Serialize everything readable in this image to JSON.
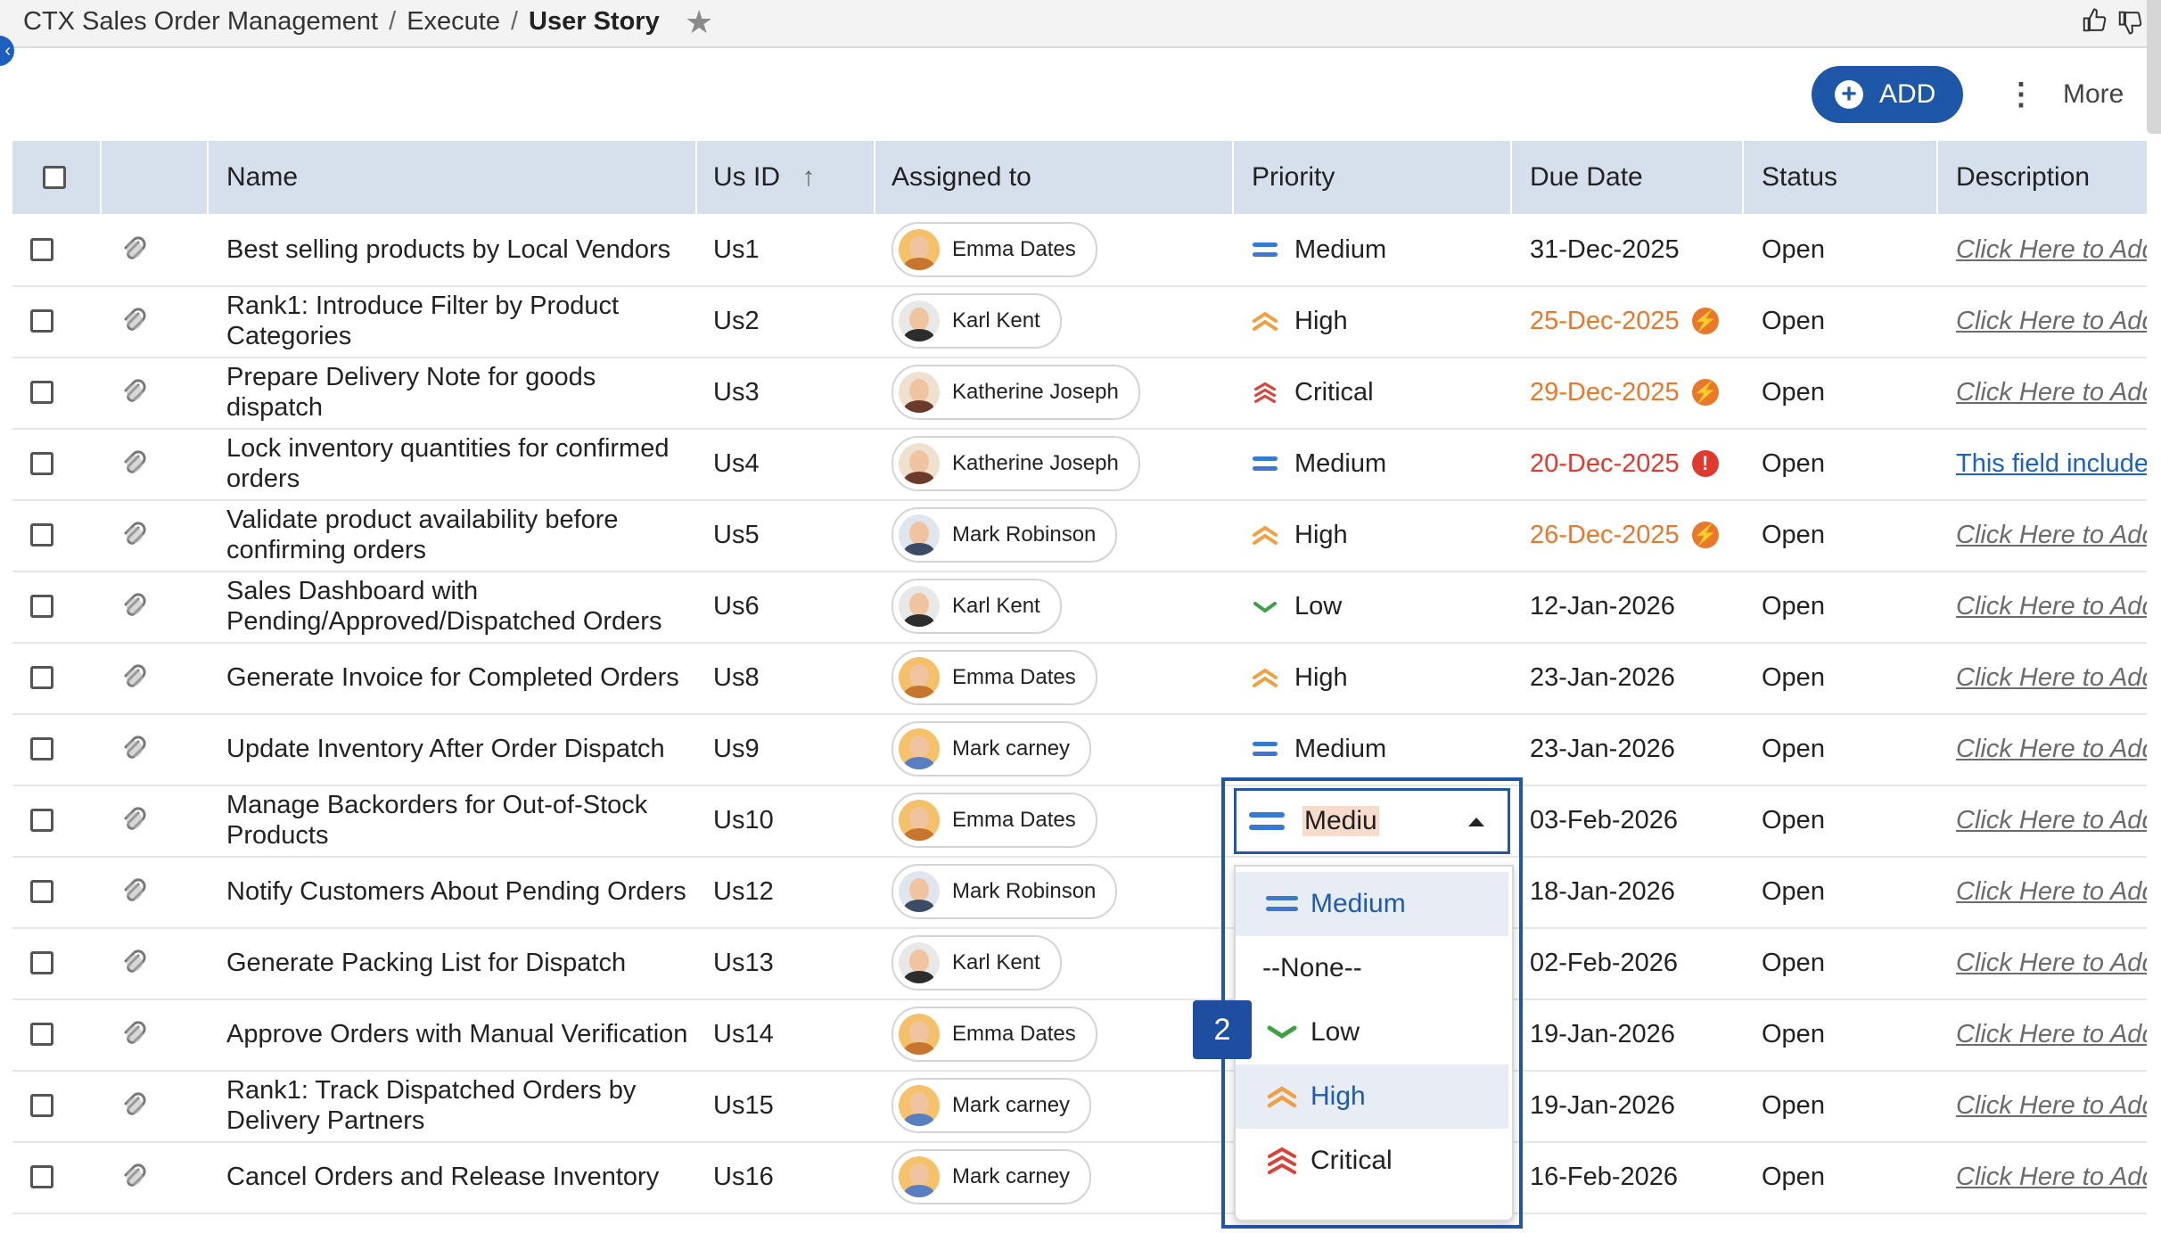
{
  "breadcrumb": {
    "app": "CTX Sales Order Management",
    "section": "Execute",
    "current": "User Story"
  },
  "toolbar": {
    "add_label": "ADD",
    "more_label": "More"
  },
  "columns": {
    "name": "Name",
    "usid": "Us ID",
    "assigned": "Assigned to",
    "priority": "Priority",
    "due": "Due Date",
    "status": "Status",
    "description": "Description"
  },
  "rows": [
    {
      "name": "Best selling products by Local Vendors",
      "usid": "Us1",
      "assignee": "Emma Dates",
      "priority": "Medium",
      "due": "31-Dec-2025",
      "status": "Open",
      "description": "Click Here to Add"
    },
    {
      "name": "Rank1: Introduce Filter by Product Categories",
      "usid": "Us2",
      "assignee": "Karl Kent",
      "priority": "High",
      "due": "25-Dec-2025",
      "status": "Open",
      "description": "Click Here to Add"
    },
    {
      "name": "Prepare Delivery Note for goods dispatch",
      "usid": "Us3",
      "assignee": "Katherine Joseph",
      "priority": "Critical",
      "due": "29-Dec-2025",
      "status": "Open",
      "description": "Click Here to Add"
    },
    {
      "name": "Lock inventory quantities for confirmed orders",
      "usid": "Us4",
      "assignee": "Katherine Joseph",
      "priority": "Medium",
      "due": "20-Dec-2025",
      "status": "Open",
      "description": "This field includes"
    },
    {
      "name": "Validate product availability before confirming orders",
      "usid": "Us5",
      "assignee": "Mark Robinson",
      "priority": "High",
      "due": "26-Dec-2025",
      "status": "Open",
      "description": "Click Here to Add"
    },
    {
      "name": "Sales Dashboard with Pending/Approved/Dispatched Orders",
      "usid": "Us6",
      "assignee": "Karl Kent",
      "priority": "Low",
      "due": "12-Jan-2026",
      "status": "Open",
      "description": "Click Here to Add"
    },
    {
      "name": "Generate Invoice for Completed Orders",
      "usid": "Us8",
      "assignee": "Emma Dates",
      "priority": "High",
      "due": "23-Jan-2026",
      "status": "Open",
      "description": "Click Here to Add"
    },
    {
      "name": "Update Inventory After Order Dispatch",
      "usid": "Us9",
      "assignee": "Mark carney",
      "priority": "Medium",
      "due": "23-Jan-2026",
      "status": "Open",
      "description": "Click Here to Add"
    },
    {
      "name": "Manage Backorders for Out-of-Stock Products",
      "usid": "Us10",
      "assignee": "Emma Dates",
      "priority": "",
      "due": "03-Feb-2026",
      "status": "Open",
      "description": "Click Here to Add"
    },
    {
      "name": "Notify Customers About Pending Orders",
      "usid": "Us12",
      "assignee": "Mark Robinson",
      "priority": "",
      "due": "18-Jan-2026",
      "status": "Open",
      "description": "Click Here to Add"
    },
    {
      "name": "Generate Packing List for Dispatch",
      "usid": "Us13",
      "assignee": "Karl Kent",
      "priority": "",
      "due": "02-Feb-2026",
      "status": "Open",
      "description": "Click Here to Add"
    },
    {
      "name": "Approve Orders with Manual Verification",
      "usid": "Us14",
      "assignee": "Emma Dates",
      "priority": "",
      "due": "19-Jan-2026",
      "status": "Open",
      "description": "Click Here to Add"
    },
    {
      "name": "Rank1: Track Dispatched Orders by Delivery Partners",
      "usid": "Us15",
      "assignee": "Mark carney",
      "priority": "",
      "due": "19-Jan-2026",
      "status": "Open",
      "description": "Click Here to Add"
    },
    {
      "name": "Cancel Orders and Release Inventory",
      "usid": "Us16",
      "assignee": "Mark carney",
      "priority": "",
      "due": "16-Feb-2026",
      "status": "Open",
      "description": "Click Here to Add"
    }
  ],
  "due_status": {
    "25-Dec-2025": "warn",
    "29-Dec-2025": "warn",
    "20-Dec-2025": "overdue",
    "26-Dec-2025": "warn"
  },
  "dropdown": {
    "input_value": "Mediu",
    "options": [
      "Medium",
      "--None--",
      "Low",
      "High",
      "Critical"
    ],
    "selected": "Medium",
    "hovered": "High"
  },
  "step_badge": "2",
  "colors": {
    "accent": "#1e56a8",
    "header_bg": "#d6dfec",
    "warn": "#e8782b",
    "overdue": "#e03a2f",
    "medium": "#3a78d4",
    "high": "#f0a040",
    "critical": "#d9443a",
    "low": "#3fa04a"
  },
  "icons": {
    "star": "star-icon",
    "like": "thumbs-up-icon",
    "dislike": "thumbs-down-icon",
    "attachment": "paperclip-icon",
    "sort": "arrow-up-icon"
  }
}
